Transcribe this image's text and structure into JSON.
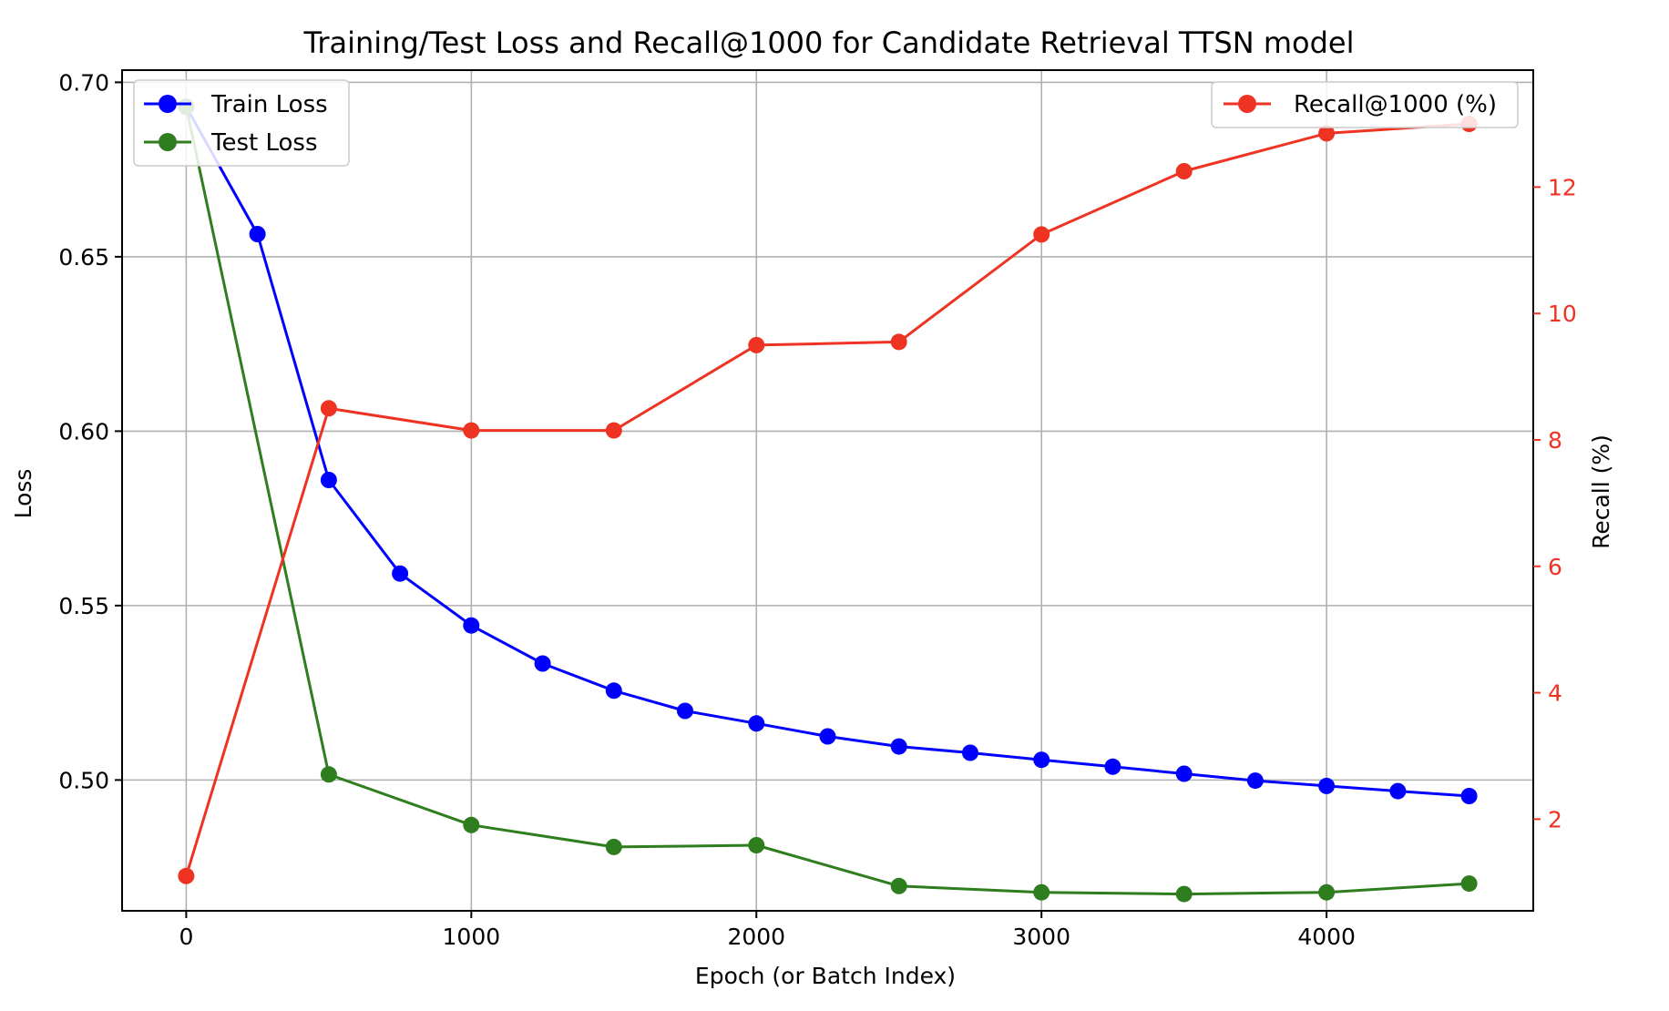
{
  "chart_data": {
    "type": "line",
    "title": "Training/Test Loss and Recall@1000 for Candidate Retrieval TTSN model",
    "xlabel": "Epoch (or Batch Index)",
    "ylabel_left": "Loss",
    "ylabel_right": "Recall (%)",
    "xlim": [
      -225,
      4725
    ],
    "ylim_left": [
      0.4625,
      0.7035
    ],
    "ylim_right": [
      0.55,
      13.85
    ],
    "x_ticks": [
      0,
      1000,
      2000,
      3000,
      4000
    ],
    "y_left_ticks": [
      0.5,
      0.55,
      0.6,
      0.65,
      0.7
    ],
    "y_left_tick_labels": [
      "0.50",
      "0.55",
      "0.60",
      "0.65",
      "0.70"
    ],
    "y_right_ticks": [
      2,
      4,
      6,
      8,
      10,
      12
    ],
    "y_right_tick_labels": [
      "2",
      "4",
      "6",
      "8",
      "10",
      "12"
    ],
    "grid": true,
    "legend_left_position": "top-left",
    "legend_right_position": "top-right",
    "series": [
      {
        "name": "Train Loss",
        "axis": "left",
        "color": "#0000ff",
        "x": [
          0,
          250,
          500,
          750,
          1000,
          1250,
          1500,
          1750,
          2000,
          2250,
          2500,
          2750,
          3000,
          3250,
          3500,
          3750,
          4000,
          4250,
          4500
        ],
        "values": [
          0.693,
          0.6565,
          0.586,
          0.5592,
          0.5443,
          0.5334,
          0.5256,
          0.5198,
          0.5162,
          0.5125,
          0.5096,
          0.5078,
          0.5058,
          0.5038,
          0.5018,
          0.4998,
          0.4983,
          0.4968,
          0.4954
        ]
      },
      {
        "name": "Test Loss",
        "axis": "left",
        "color": "#2e7d1e",
        "x": [
          0,
          500,
          1000,
          1500,
          2000,
          2500,
          3000,
          3500,
          4000,
          4500
        ],
        "values": [
          0.693,
          0.5016,
          0.4871,
          0.4808,
          0.4813,
          0.4696,
          0.4678,
          0.4673,
          0.4678,
          0.4703
        ]
      },
      {
        "name": "Recall@1000 (%)",
        "axis": "right",
        "color": "#ee3322",
        "x": [
          0,
          500,
          1000,
          1500,
          2000,
          2500,
          3000,
          3500,
          4000,
          4500
        ],
        "values": [
          1.1,
          8.5,
          8.15,
          8.15,
          9.5,
          9.55,
          11.25,
          12.25,
          12.85,
          13.0
        ]
      }
    ]
  }
}
